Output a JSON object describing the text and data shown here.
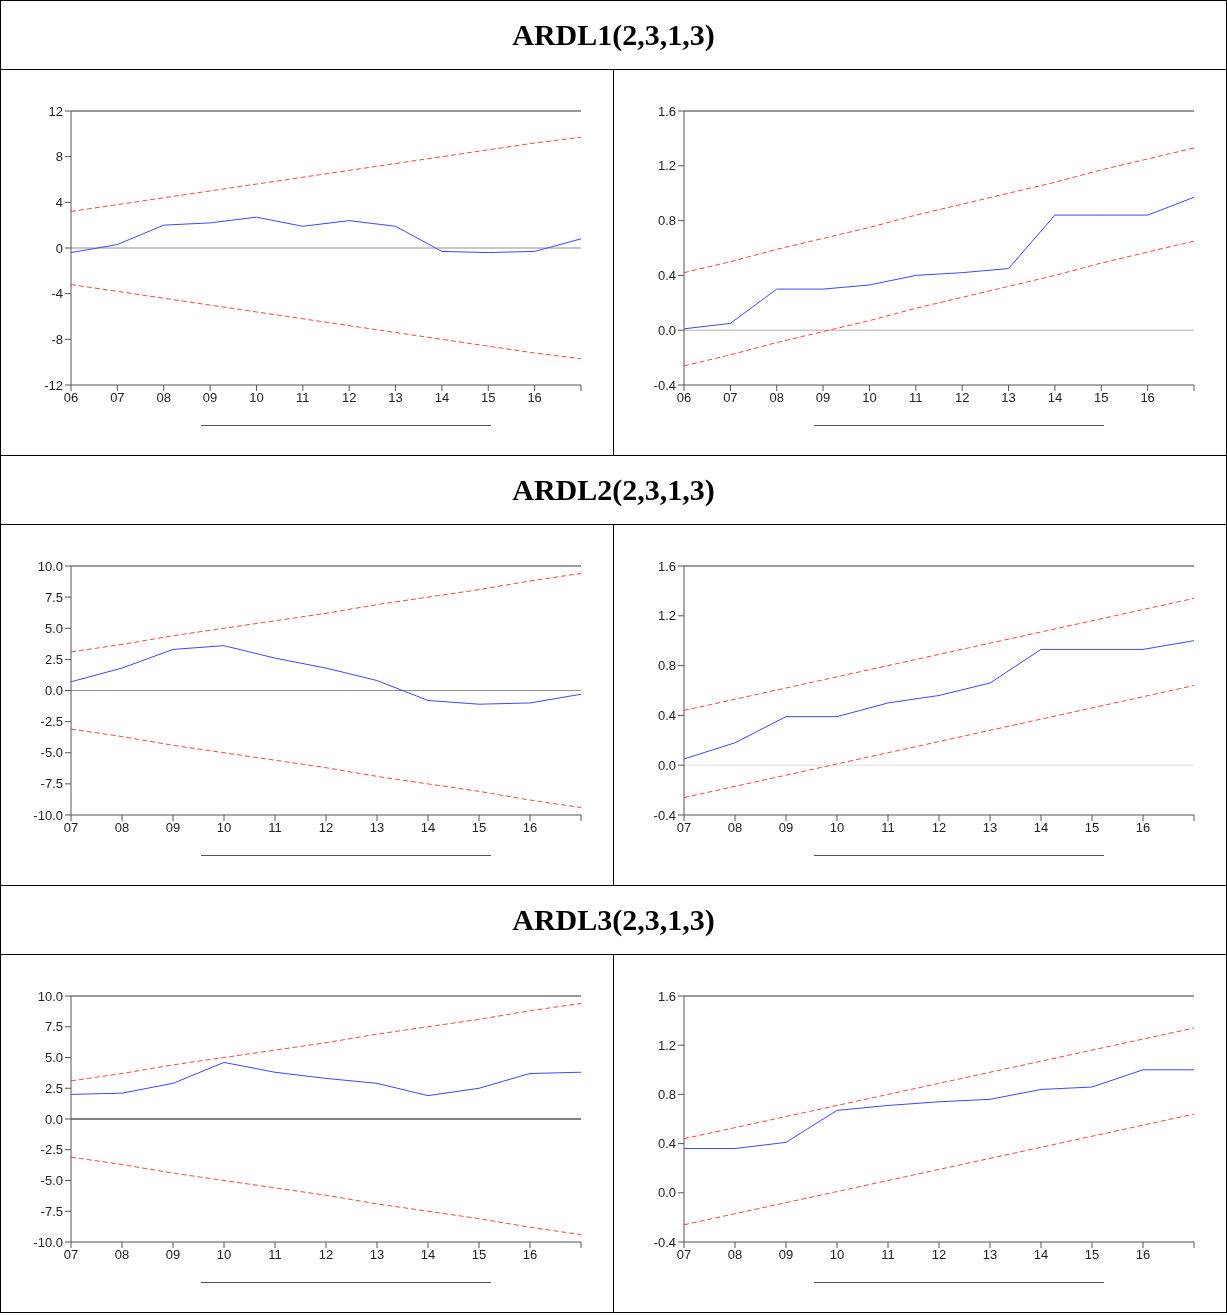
{
  "chart_data": [
    {
      "type": "line",
      "title": "ARDL1(2,3,1,3)",
      "categories": [
        "06",
        "07",
        "08",
        "09",
        "10",
        "11",
        "12",
        "13",
        "14",
        "15",
        "16",
        null
      ],
      "ylim": [
        -12,
        12
      ],
      "yticks": [
        -12,
        -8,
        -4,
        0,
        4,
        8,
        12
      ],
      "ref_lines": [
        {
          "axis": "y",
          "value": 0,
          "color": "#909090"
        }
      ],
      "series": [
        {
          "color": "#4444ff",
          "line_style": "solid",
          "values": [
            -0.4,
            0.3,
            2.0,
            2.2,
            2.7,
            1.9,
            2.4,
            1.9,
            -0.3,
            -0.4,
            -0.3,
            0.8
          ]
        },
        {
          "color": "#ff4444",
          "line_style": "dashed",
          "values": [
            3.2,
            3.8,
            4.4,
            5.0,
            5.6,
            6.2,
            6.8,
            7.4,
            8.0,
            8.6,
            9.2,
            9.7
          ]
        },
        {
          "color": "#ff4444",
          "line_style": "dashed",
          "values": [
            -3.2,
            -3.8,
            -4.4,
            -5.0,
            -5.6,
            -6.2,
            -6.8,
            -7.4,
            -8.0,
            -8.6,
            -9.2,
            -9.7
          ]
        }
      ]
    },
    {
      "type": "line",
      "categories": [
        "06",
        "07",
        "08",
        "09",
        "10",
        "11",
        "12",
        "13",
        "14",
        "15",
        "16",
        null
      ],
      "ylim": [
        -0.4,
        1.6
      ],
      "yticks": [
        -0.4,
        {
          "value": 0,
          "label": "0.0"
        },
        0.4,
        0.8,
        1.2,
        1.6
      ],
      "ref_lines": [
        {
          "axis": "y",
          "value": 0,
          "color": "#b0b0b0"
        }
      ],
      "series": [
        {
          "color": "#4444ff",
          "line_style": "solid",
          "values": [
            0.01,
            0.05,
            0.3,
            0.3,
            0.33,
            0.4,
            0.42,
            0.45,
            0.84,
            0.84,
            0.84,
            0.97
          ]
        },
        {
          "color": "#ff4444",
          "line_style": "dashed",
          "values": [
            0.42,
            0.5,
            0.59,
            0.67,
            0.75,
            0.84,
            0.92,
            1.0,
            1.08,
            1.17,
            1.25,
            1.33
          ]
        },
        {
          "color": "#ff4444",
          "line_style": "dashed",
          "values": [
            -0.26,
            -0.18,
            -0.09,
            -0.01,
            0.07,
            0.16,
            0.24,
            0.32,
            0.4,
            0.49,
            0.57,
            0.65
          ]
        }
      ]
    },
    {
      "type": "line",
      "title": "ARDL2(2,3,1,3)",
      "categories": [
        "07",
        "08",
        "09",
        "10",
        "11",
        "12",
        "13",
        "14",
        "15",
        "16",
        null
      ],
      "ylim": [
        -10,
        10
      ],
      "yticks": [
        {
          "value": -10,
          "label": "-10.0"
        },
        -7.5,
        {
          "value": -5,
          "label": "-5.0"
        },
        -2.5,
        {
          "value": 0,
          "label": "0.0"
        },
        2.5,
        {
          "value": 5,
          "label": "5.0"
        },
        7.5,
        {
          "value": 10,
          "label": "10.0"
        }
      ],
      "ref_lines": [
        {
          "axis": "y",
          "value": 0,
          "color": "#909090"
        }
      ],
      "series": [
        {
          "color": "#4444ff",
          "line_style": "solid",
          "values": [
            0.7,
            1.8,
            3.3,
            3.6,
            2.6,
            1.8,
            0.8,
            -0.8,
            -1.1,
            -1.0,
            -0.3
          ]
        },
        {
          "color": "#ff4444",
          "line_style": "dashed",
          "values": [
            3.1,
            3.7,
            4.4,
            5.0,
            5.6,
            6.2,
            6.9,
            7.5,
            8.1,
            8.8,
            9.4
          ]
        },
        {
          "color": "#ff4444",
          "line_style": "dashed",
          "values": [
            -3.1,
            -3.7,
            -4.4,
            -5.0,
            -5.6,
            -6.2,
            -6.9,
            -7.5,
            -8.1,
            -8.8,
            -9.4
          ]
        }
      ]
    },
    {
      "type": "line",
      "categories": [
        "07",
        "08",
        "09",
        "10",
        "11",
        "12",
        "13",
        "14",
        "15",
        "16",
        null
      ],
      "ylim": [
        -0.4,
        1.6
      ],
      "yticks": [
        -0.4,
        {
          "value": 0,
          "label": "0.0"
        },
        0.4,
        0.8,
        1.2,
        1.6
      ],
      "ref_lines": [
        {
          "axis": "y",
          "value": 0,
          "color": "#e0e0e0"
        }
      ],
      "series": [
        {
          "color": "#4444ff",
          "line_style": "solid",
          "values": [
            0.05,
            0.18,
            0.39,
            0.39,
            0.5,
            0.56,
            0.66,
            0.93,
            0.93,
            0.93,
            1.0
          ]
        },
        {
          "color": "#ff4444",
          "line_style": "dashed",
          "values": [
            0.44,
            0.53,
            0.62,
            0.71,
            0.8,
            0.89,
            0.98,
            1.07,
            1.16,
            1.25,
            1.34
          ]
        },
        {
          "color": "#ff4444",
          "line_style": "dashed",
          "values": [
            -0.26,
            -0.17,
            -0.08,
            0.01,
            0.1,
            0.19,
            0.28,
            0.37,
            0.46,
            0.55,
            0.64
          ]
        }
      ]
    },
    {
      "type": "line",
      "title": "ARDL3(2,3,1,3)",
      "categories": [
        "07",
        "08",
        "09",
        "10",
        "11",
        "12",
        "13",
        "14",
        "15",
        "16",
        null
      ],
      "ylim": [
        -10,
        10
      ],
      "yticks": [
        {
          "value": -10,
          "label": "-10.0"
        },
        -7.5,
        {
          "value": -5,
          "label": "-5.0"
        },
        -2.5,
        {
          "value": 0,
          "label": "0.0"
        },
        2.5,
        {
          "value": 5,
          "label": "5.0"
        },
        7.5,
        {
          "value": 10,
          "label": "10.0"
        }
      ],
      "ref_lines": [
        {
          "axis": "y",
          "value": 0,
          "color": "#000000"
        }
      ],
      "series": [
        {
          "color": "#4444ff",
          "line_style": "solid",
          "values": [
            2.0,
            2.1,
            2.9,
            4.6,
            3.8,
            3.3,
            2.9,
            1.9,
            2.5,
            3.7,
            3.8
          ]
        },
        {
          "color": "#ff4444",
          "line_style": "dashed",
          "values": [
            3.1,
            3.7,
            4.4,
            5.0,
            5.6,
            6.2,
            6.9,
            7.5,
            8.1,
            8.8,
            9.4
          ]
        },
        {
          "color": "#ff4444",
          "line_style": "dashed",
          "values": [
            -3.1,
            -3.7,
            -4.4,
            -5.0,
            -5.6,
            -6.2,
            -6.9,
            -7.5,
            -8.1,
            -8.8,
            -9.4
          ]
        }
      ]
    },
    {
      "type": "line",
      "categories": [
        "07",
        "08",
        "09",
        "10",
        "11",
        "12",
        "13",
        "14",
        "15",
        "16",
        null
      ],
      "ylim": [
        -0.4,
        1.6
      ],
      "yticks": [
        -0.4,
        {
          "value": 0,
          "label": "0.0"
        },
        0.4,
        0.8,
        1.2,
        1.6
      ],
      "series": [
        {
          "color": "#4444ff",
          "line_style": "solid",
          "values": [
            0.36,
            0.36,
            0.41,
            0.67,
            0.71,
            0.74,
            0.76,
            0.84,
            0.86,
            1.0,
            1.0
          ]
        },
        {
          "color": "#ff4444",
          "line_style": "dashed",
          "values": [
            0.44,
            0.53,
            0.62,
            0.71,
            0.8,
            0.89,
            0.98,
            1.07,
            1.16,
            1.25,
            1.34
          ]
        },
        {
          "color": "#ff4444",
          "line_style": "dashed",
          "values": [
            -0.26,
            -0.17,
            -0.08,
            0.01,
            0.1,
            0.19,
            0.28,
            0.37,
            0.46,
            0.55,
            0.64
          ]
        }
      ]
    }
  ]
}
